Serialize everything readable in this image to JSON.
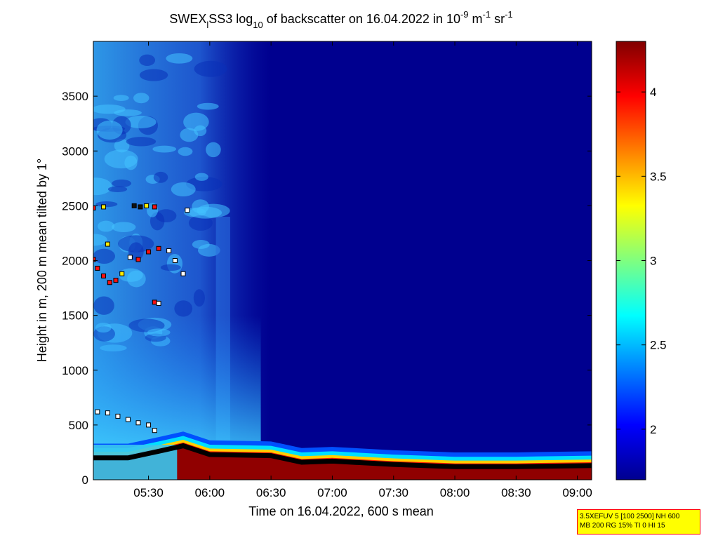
{
  "chart_data": {
    "type": "heatmap",
    "title": {
      "p1": "SWEX",
      "sub1": "l",
      "p2": "SS3 log",
      "sub2": "10",
      "p3": " of backscatter on 16.04.2022 in 10",
      "sup1": "-9",
      "p4": " m",
      "sup2": "-1",
      "p5": " sr",
      "sup3": "-1"
    },
    "xlabel": "Time on 16.04.2022, 600 s mean",
    "ylabel": "Height in m, 200 m mean tilted by 1°",
    "x_range": [
      "05:03",
      "09:07"
    ],
    "y_range": [
      0,
      4000
    ],
    "x_ticks": [
      "05:30",
      "06:00",
      "06:30",
      "07:00",
      "07:30",
      "08:00",
      "08:30",
      "09:00"
    ],
    "y_ticks": [
      0,
      500,
      1000,
      1500,
      2000,
      2500,
      3000,
      3500
    ],
    "colorbar": {
      "range": [
        1.7,
        4.3
      ],
      "ticks": [
        "2",
        "2.5",
        "3",
        "3.5",
        "4"
      ],
      "colormap": "jet"
    },
    "background_value": 1.75,
    "boundary_layer_top_m": [
      [
        "05:03",
        200
      ],
      [
        "05:20",
        200
      ],
      [
        "05:35",
        260
      ],
      [
        "05:47",
        310
      ],
      [
        "06:00",
        230
      ],
      [
        "06:30",
        220
      ],
      [
        "06:45",
        160
      ],
      [
        "07:00",
        170
      ],
      [
        "07:30",
        140
      ],
      [
        "08:00",
        120
      ],
      [
        "08:30",
        120
      ],
      [
        "09:07",
        130
      ]
    ],
    "layer_points": [
      {
        "t": "05:05",
        "h": 620,
        "c": "white"
      },
      {
        "t": "05:10",
        "h": 610,
        "c": "white"
      },
      {
        "t": "05:15",
        "h": 580,
        "c": "white"
      },
      {
        "t": "05:20",
        "h": 550,
        "c": "white"
      },
      {
        "t": "05:25",
        "h": 520,
        "c": "white"
      },
      {
        "t": "05:30",
        "h": 500,
        "c": "white"
      },
      {
        "t": "05:33",
        "h": 450,
        "c": "white"
      },
      {
        "t": "05:05",
        "h": 1930,
        "c": "red"
      },
      {
        "t": "05:08",
        "h": 1860,
        "c": "red"
      },
      {
        "t": "05:11",
        "h": 1800,
        "c": "red"
      },
      {
        "t": "05:14",
        "h": 1820,
        "c": "red"
      },
      {
        "t": "05:17",
        "h": 1880,
        "c": "yellow"
      },
      {
        "t": "05:21",
        "h": 2030,
        "c": "white"
      },
      {
        "t": "05:25",
        "h": 2010,
        "c": "red"
      },
      {
        "t": "05:30",
        "h": 2080,
        "c": "red"
      },
      {
        "t": "05:35",
        "h": 2110,
        "c": "red"
      },
      {
        "t": "05:40",
        "h": 2090,
        "c": "white"
      },
      {
        "t": "05:43",
        "h": 2000,
        "c": "white"
      },
      {
        "t": "05:47",
        "h": 1880,
        "c": "white"
      },
      {
        "t": "05:03",
        "h": 2480,
        "c": "red"
      },
      {
        "t": "05:08",
        "h": 2490,
        "c": "yellow"
      },
      {
        "t": "05:10",
        "h": 2150,
        "c": "yellow"
      },
      {
        "t": "05:03",
        "h": 2010,
        "c": "red"
      },
      {
        "t": "05:23",
        "h": 2500,
        "c": "black"
      },
      {
        "t": "05:26",
        "h": 2490,
        "c": "black"
      },
      {
        "t": "05:29",
        "h": 2500,
        "c": "yellow"
      },
      {
        "t": "05:33",
        "h": 2490,
        "c": "red"
      },
      {
        "t": "05:49",
        "h": 2460,
        "c": "white"
      },
      {
        "t": "05:33",
        "h": 1620,
        "c": "red"
      },
      {
        "t": "05:35",
        "h": 1610,
        "c": "white"
      }
    ]
  },
  "info_box": [
    "3.5XEFUV 5 [100 2500] NH 600",
    "MB 200 RG 15% TI 0 HI 15"
  ]
}
